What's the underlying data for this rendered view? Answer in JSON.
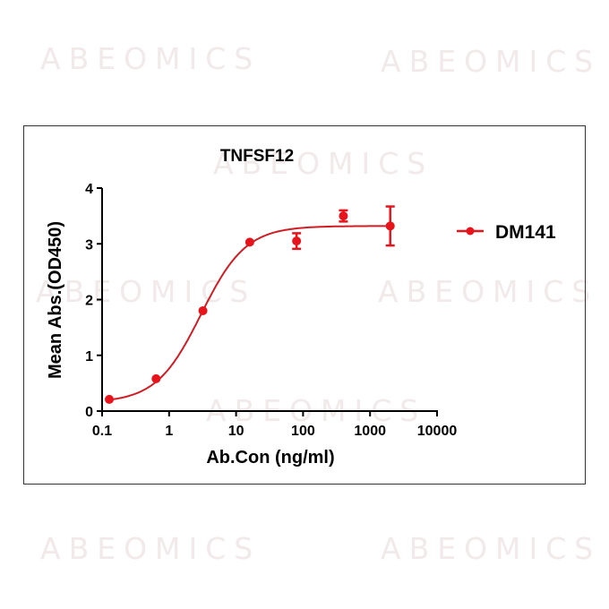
{
  "watermark": "ABEOMICS",
  "chart_data": {
    "type": "scatter",
    "title": "TNFSF12",
    "xlabel": "Ab.Con (ng/ml)",
    "ylabel": "Mean Abs.(OD450)",
    "x_scale": "log",
    "xlim": [
      0.1,
      10000
    ],
    "ylim": [
      0,
      4
    ],
    "x_ticks": [
      "0.1",
      "1",
      "10",
      "100",
      "1000",
      "10000"
    ],
    "y_ticks": [
      "0",
      "1",
      "2",
      "3",
      "4"
    ],
    "grid": false,
    "legend": "right",
    "color": "#e8141c",
    "curve_color": "#d21c24",
    "fit": "sigmoidal (4PL) curve",
    "series": [
      {
        "name": "DM141",
        "x": [
          0.128,
          0.64,
          3.2,
          16,
          80,
          400,
          2000
        ],
        "y": [
          0.21,
          0.58,
          1.8,
          3.03,
          3.05,
          3.5,
          3.32
        ],
        "error": [
          0.02,
          0.03,
          0.03,
          0.03,
          0.14,
          0.1,
          0.35
        ]
      }
    ]
  }
}
